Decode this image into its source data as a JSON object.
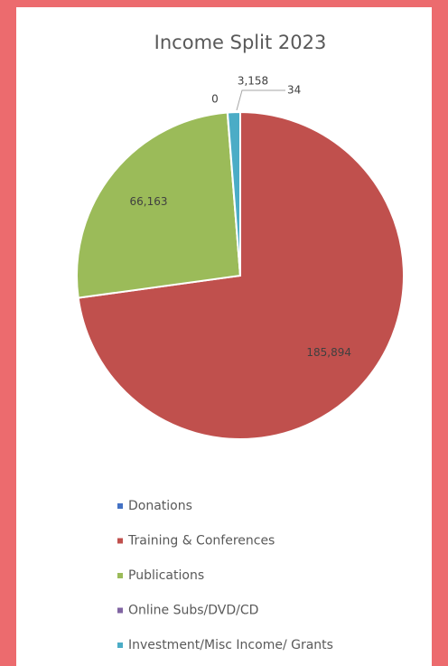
{
  "chart_data": {
    "type": "pie",
    "title": "Income Split 2023",
    "categories": [
      "Donations",
      "Training & Conferences",
      "Publications",
      "Online Subs/DVD/CD",
      "Investment/Misc Income/ Grants"
    ],
    "values": [
      0,
      185894,
      66163,
      34,
      3158
    ],
    "value_labels": [
      "0",
      "185,894",
      "66,163",
      "34",
      "3,158"
    ],
    "colors": [
      "#4472c4",
      "#c0504d",
      "#9bbb59",
      "#8064a2",
      "#4bacc6"
    ],
    "legend": "bottom"
  }
}
